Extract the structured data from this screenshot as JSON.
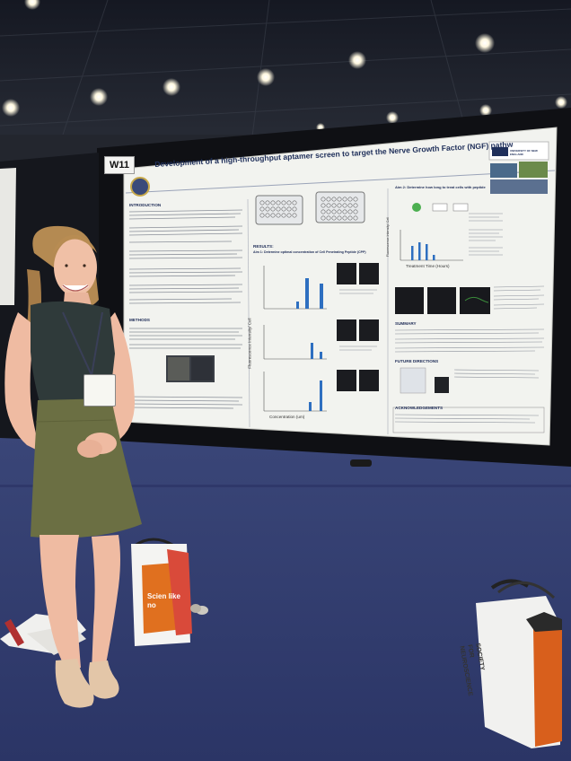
{
  "board": {
    "label": "W11"
  },
  "poster": {
    "title": "Development of a high-throughput aptamer screen to target the Nerve Growth Factor (NGF) pathway",
    "logo_text": "UNIVERSITY OF NEW ENGLAND",
    "sections": {
      "introduction": "INTRODUCTION",
      "methods": "METHODS",
      "results": "RESULTS:",
      "aim1": "Aim 1: Determine optimal concentration of Cell Penetrating Peptide (CPP)",
      "aim2": "Aim 2: Determine how long to treat cells with peptide",
      "summary": "SUMMARY",
      "future": "FUTURE DIRECTIONS",
      "ack": "ACKNOWLEDGEMENTS"
    },
    "axis_labels": {
      "y_left": "Fluorescence Intensity/ Cell",
      "x_left": "Concentration (um)",
      "x_right": "Treatment Time (Hours)",
      "y_right": "Fluorescence Intensity/ Cell"
    }
  },
  "colors": {
    "poster_bg": "#f2f3ef",
    "title_blue": "#1f2f5a",
    "bar_blue": "#2e6fc0",
    "carpet": "#2f3a6e",
    "bag_orange": "#e0701f"
  },
  "bags": {
    "left_text": "Scien like no",
    "right_text": "SOCIETY FOR NEUROSCIENCE"
  }
}
